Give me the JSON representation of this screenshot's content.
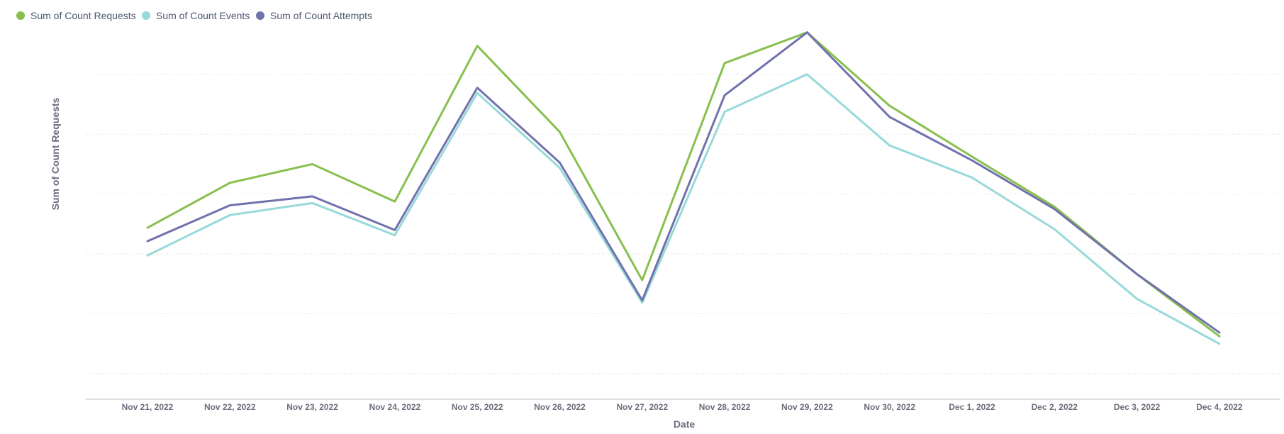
{
  "chart_data": {
    "type": "line",
    "xlabel": "Date",
    "ylabel": "Sum of Count Requests",
    "ylim": [
      0,
      450
    ],
    "categories": [
      "Nov 21, 2022",
      "Nov 22, 2022",
      "Nov 23, 2022",
      "Nov 24, 2022",
      "Nov 25, 2022",
      "Nov 26, 2022",
      "Nov 27, 2022",
      "Nov 28, 2022",
      "Nov 29, 2022",
      "Nov 30, 2022",
      "Dec 1, 2022",
      "Dec 2, 2022",
      "Dec 3, 2022",
      "Dec 4, 2022"
    ],
    "series": [
      {
        "name": "Sum of Count Requests",
        "color": "#88bf4d",
        "values": [
          195,
          255,
          280,
          230,
          438,
          323,
          125,
          415,
          456,
          358,
          290,
          223,
          133,
          50
        ]
      },
      {
        "name": "Sum of Count Events",
        "color": "#98d9d9",
        "values": [
          158,
          212,
          228,
          185,
          375,
          275,
          95,
          350,
          400,
          305,
          262,
          193,
          100,
          40
        ]
      },
      {
        "name": "Sum of Count Attempts",
        "color": "#7172ad",
        "values": [
          177,
          225,
          237,
          192,
          382,
          282,
          98,
          372,
          456,
          343,
          285,
          220,
          133,
          55
        ]
      }
    ],
    "grid": true,
    "legend_position": "top-left"
  }
}
